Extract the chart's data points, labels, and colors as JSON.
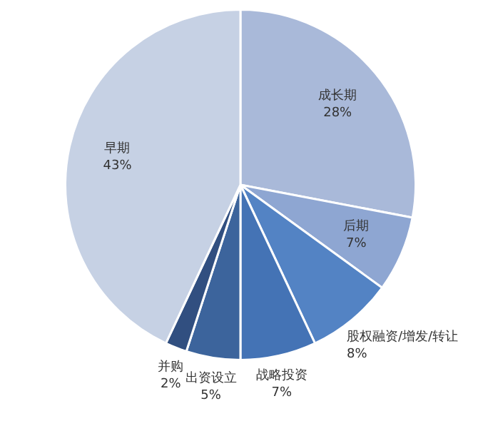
{
  "chart_data": {
    "type": "pie",
    "categories": [
      "成长期",
      "后期",
      "股权融资/增发/转让",
      "战略投资",
      "出资设立",
      "并购",
      "早期"
    ],
    "values": [
      28,
      7,
      8,
      7,
      5,
      2,
      43
    ],
    "colors": [
      "#a9b9d9",
      "#8ea6d2",
      "#5383c4",
      "#4473b5",
      "#3c649c",
      "#314f80",
      "#c6d1e4"
    ],
    "value_labels": [
      "28%",
      "7%",
      "8%",
      "7%",
      "5%",
      "2%",
      "43%"
    ],
    "legend": false
  }
}
